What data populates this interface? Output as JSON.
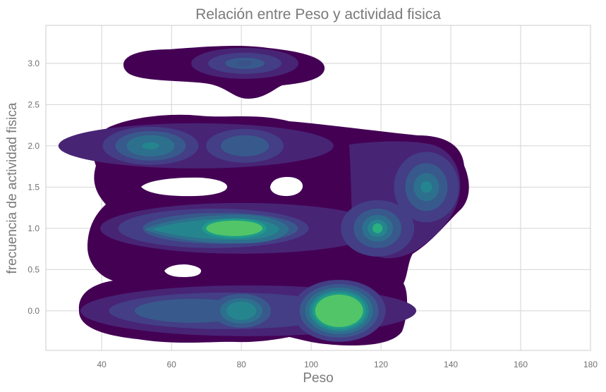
{
  "chart_data": {
    "type": "kde-density",
    "title": "Relación entre Peso y actividad fisica",
    "xlabel": "Peso",
    "ylabel": "frecuencia de actividad fisica",
    "xlim": [
      24,
      180
    ],
    "ylim": [
      -0.48,
      3.46
    ],
    "x_ticks": [
      40,
      60,
      80,
      100,
      120,
      140,
      160,
      180
    ],
    "y_ticks": [
      0.0,
      0.5,
      1.0,
      1.5,
      2.0,
      2.5,
      3.0
    ],
    "grid": true,
    "colormap": [
      "#440154",
      "#482475",
      "#433e85",
      "#38598c",
      "#2d708e",
      "#25858e",
      "#1e9b8a",
      "#2ab07f",
      "#52c569"
    ],
    "density_peaks": [
      {
        "x": 108,
        "y": 0.0,
        "level": "highest"
      },
      {
        "x": 78,
        "y": 1.0,
        "level": "highest"
      },
      {
        "x": 80,
        "y": 0.0,
        "level": "high"
      },
      {
        "x": 119,
        "y": 1.0,
        "level": "high"
      },
      {
        "x": 54,
        "y": 2.0,
        "level": "medium"
      },
      {
        "x": 133,
        "y": 1.5,
        "level": "medium"
      },
      {
        "x": 81,
        "y": 2.0,
        "level": "low"
      },
      {
        "x": 81,
        "y": 3.0,
        "level": "low"
      }
    ]
  }
}
